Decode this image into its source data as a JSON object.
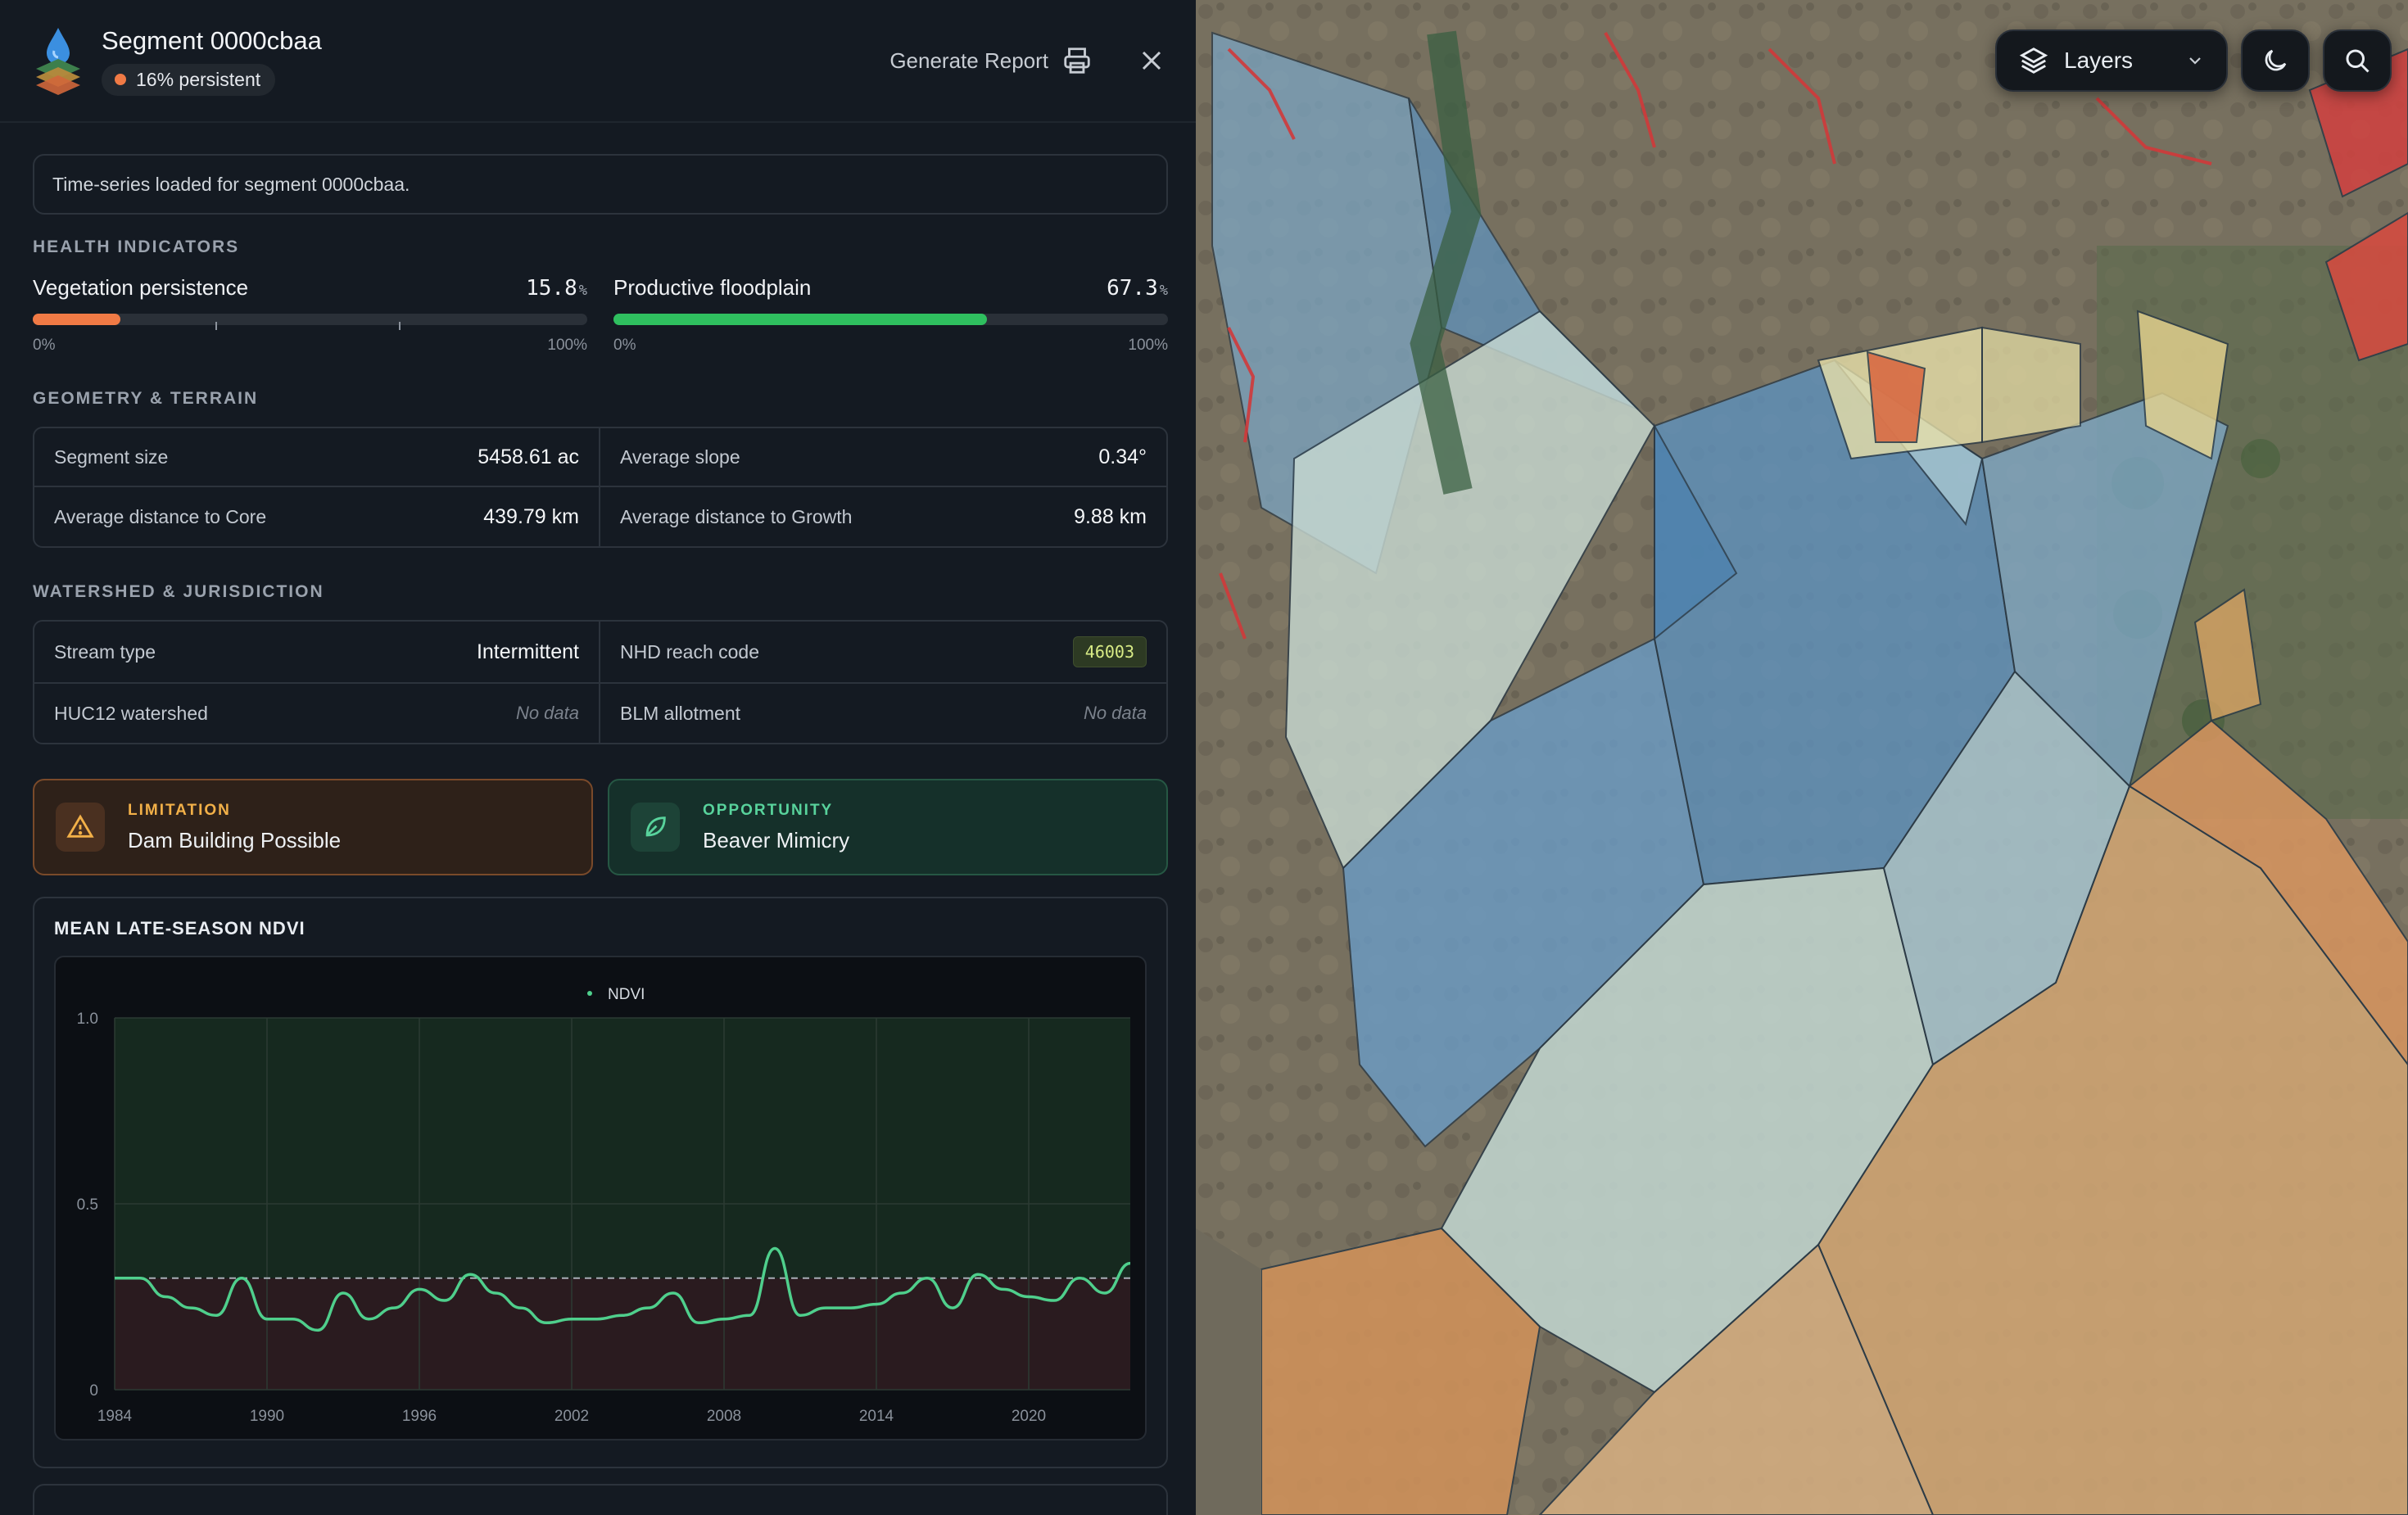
{
  "header": {
    "title": "Segment 0000cbaa",
    "persistence_badge": "16% persistent",
    "generate_report_label": "Generate Report"
  },
  "notice": "Time-series loaded for segment 0000cbaa.",
  "health": {
    "section_title": "HEALTH INDICATORS",
    "vegetation": {
      "label": "Vegetation persistence",
      "value": "15.8",
      "unit": "%",
      "fraction": 0.158,
      "min_label": "0%",
      "max_label": "100%",
      "color": "#f07a45"
    },
    "floodplain": {
      "label": "Productive floodplain",
      "value": "67.3",
      "unit": "%",
      "fraction": 0.673,
      "min_label": "0%",
      "max_label": "100%",
      "color": "#2fbf5f"
    }
  },
  "geometry": {
    "section_title": "GEOMETRY & TERRAIN",
    "size_label": "Segment size",
    "size_value": "5458.61 ac",
    "slope_label": "Average slope",
    "slope_value": "0.34°",
    "core_label": "Average distance to Core",
    "core_value": "439.79 km",
    "growth_label": "Average distance to Growth",
    "growth_value": "9.88 km"
  },
  "watershed": {
    "section_title": "WATERSHED & JURISDICTION",
    "stream_label": "Stream type",
    "stream_value": "Intermittent",
    "nhd_label": "NHD reach code",
    "nhd_value": "46003",
    "huc_label": "HUC12 watershed",
    "huc_value": "No data",
    "blm_label": "BLM allotment",
    "blm_value": "No data"
  },
  "limitation": {
    "label": "LIMITATION",
    "text": "Dam Building Possible"
  },
  "opportunity": {
    "label": "OPPORTUNITY",
    "text": "Beaver Mimicry"
  },
  "chart_card_title": "MEAN LATE-SEASON NDVI",
  "map": {
    "layers_label": "Layers"
  },
  "chart_data": {
    "type": "line",
    "title": "MEAN LATE-SEASON NDVI",
    "legend": [
      "NDVI"
    ],
    "legend_position": "top-center",
    "xlim": [
      1984,
      2024
    ],
    "ylim": [
      0,
      1.0
    ],
    "x_ticks": [
      "1984",
      "1990",
      "1996",
      "2002",
      "2008",
      "2014",
      "2020"
    ],
    "y_ticks": [
      "0",
      "0.5",
      "1.0"
    ],
    "threshold": 0.3,
    "series": [
      {
        "name": "NDVI",
        "color": "#4fcf8c",
        "x": [
          1984,
          1985,
          1986,
          1987,
          1988,
          1989,
          1990,
          1991,
          1992,
          1993,
          1994,
          1995,
          1996,
          1997,
          1998,
          1999,
          2000,
          2001,
          2002,
          2003,
          2004,
          2005,
          2006,
          2007,
          2008,
          2009,
          2010,
          2011,
          2012,
          2013,
          2014,
          2015,
          2016,
          2017,
          2018,
          2019,
          2020,
          2021,
          2022,
          2023,
          2024
        ],
        "values": [
          0.3,
          0.3,
          0.25,
          0.22,
          0.2,
          0.3,
          0.19,
          0.19,
          0.16,
          0.26,
          0.19,
          0.22,
          0.27,
          0.24,
          0.31,
          0.26,
          0.22,
          0.18,
          0.19,
          0.19,
          0.2,
          0.22,
          0.26,
          0.18,
          0.19,
          0.2,
          0.38,
          0.2,
          0.22,
          0.22,
          0.23,
          0.26,
          0.3,
          0.22,
          0.31,
          0.27,
          0.25,
          0.24,
          0.3,
          0.26,
          0.34
        ]
      }
    ]
  }
}
